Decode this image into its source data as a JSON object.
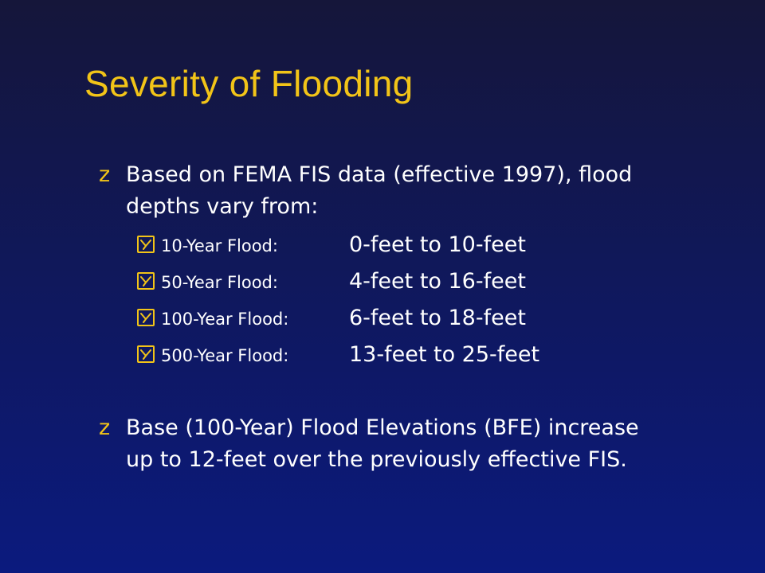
{
  "slide": {
    "title": "Severity of Flooding",
    "bullets": [
      {
        "text": "Based on FEMA FIS data (effective 1997), flood depths vary from:",
        "sub_items": [
          {
            "label": "10-Year Flood:",
            "value": "0-feet to 10-feet"
          },
          {
            "label": "50-Year Flood:",
            "value": "4-feet to 16-feet"
          },
          {
            "label": "100-Year Flood:",
            "value": "6-feet to 18-feet"
          },
          {
            "label": "500-Year Flood:",
            "value": "13-feet to 25-feet"
          }
        ]
      },
      {
        "text": "Base (100-Year) Flood Elevations (BFE) increase up to 12-feet over the previously effective FIS."
      }
    ],
    "bullet_glyph": "z",
    "colors": {
      "title": "#f2c418",
      "text": "#ffffff",
      "background_top": "#15163a",
      "background_bottom": "#0b1a7e"
    },
    "icons": {
      "bullet": "z-bullet-icon",
      "sub_bullet": "checkbox-check-icon"
    }
  }
}
